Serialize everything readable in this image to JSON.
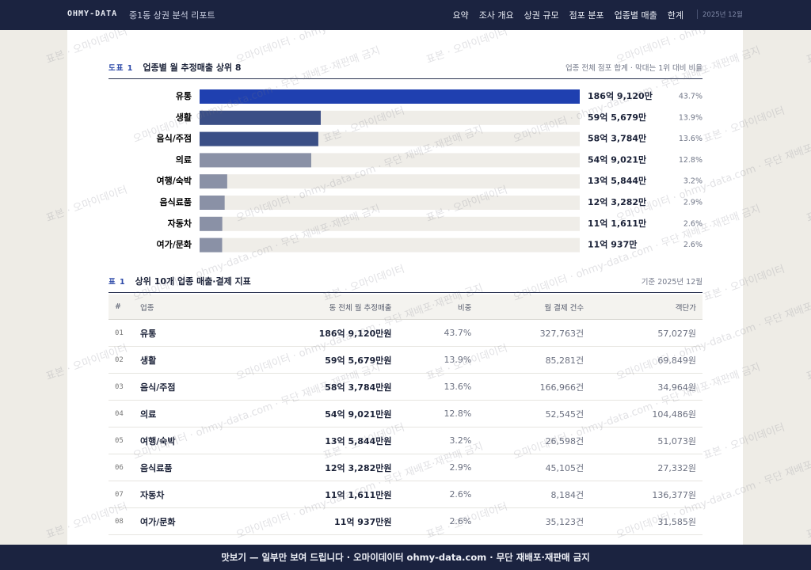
{
  "nav": {
    "logo": "OHMY-DATA",
    "subtitle": "중1동 상권 분석 리포트",
    "items": [
      "요약",
      "조사 개요",
      "상권 규모",
      "점포 분포",
      "업종별 매출",
      "한계"
    ],
    "date": "2025년 12월"
  },
  "chart_data": {
    "type": "bar",
    "label": "도표 1",
    "title": "업종별 월 추정매출 상위 8",
    "note": "업종 전체 점포 합계 · 막대는 1위 대비 비율",
    "categories": [
      "유통",
      "생활",
      "음식/주점",
      "의료",
      "여행/숙박",
      "음식료품",
      "자동차",
      "여가/문화"
    ],
    "values": [
      1869120,
      595679,
      583784,
      549021,
      135844,
      123282,
      111611,
      110937
    ],
    "value_labels": [
      "186억 9,120만",
      "59억 5,679만",
      "58억 3,784만",
      "54억 9,021만",
      "13억 5,844만",
      "12억 3,282만",
      "11억 1,611만",
      "11억 937만"
    ],
    "shares": [
      43.7,
      13.9,
      13.6,
      12.8,
      3.2,
      2.9,
      2.6,
      2.6
    ],
    "share_labels": [
      "43.7%",
      "13.9%",
      "13.6%",
      "12.8%",
      "3.2%",
      "2.9%",
      "2.6%",
      "2.6%"
    ],
    "colors": [
      "#1f40b0",
      "#3b4f86",
      "#3b4f86",
      "#8a91a6",
      "#8a91a6",
      "#8a91a6",
      "#8a91a6",
      "#8a91a6"
    ]
  },
  "table": {
    "label": "표 1",
    "title": "상위 10개 업종 매출·결제 지표",
    "note": "기준 2025년 12월",
    "headers": [
      "#",
      "업종",
      "동 전체 월 추정매출",
      "비중",
      "월 결제 건수",
      "객단가"
    ],
    "rows": [
      [
        "01",
        "유통",
        "186억 9,120만원",
        "43.7%",
        "327,763건",
        "57,027원"
      ],
      [
        "02",
        "생활",
        "59억 5,679만원",
        "13.9%",
        "85,281건",
        "69,849원"
      ],
      [
        "03",
        "음식/주점",
        "58억 3,784만원",
        "13.6%",
        "166,966건",
        "34,964원"
      ],
      [
        "04",
        "의료",
        "54억 9,021만원",
        "12.8%",
        "52,545건",
        "104,486원"
      ],
      [
        "05",
        "여행/숙박",
        "13억 5,844만원",
        "3.2%",
        "26,598건",
        "51,073원"
      ],
      [
        "06",
        "음식료품",
        "12억 3,282만원",
        "2.9%",
        "45,105건",
        "27,332원"
      ],
      [
        "07",
        "자동차",
        "11억 1,611만원",
        "2.6%",
        "8,184건",
        "136,377원"
      ],
      [
        "08",
        "여가/문화",
        "11억 937만원",
        "2.6%",
        "35,123건",
        "31,585원"
      ]
    ]
  },
  "footer": "맛보기 — 일부만 보여 드립니다 · 오마이데이터 ohmy-data.com · 무단 재배포·재판매 금지",
  "watermark": [
    "표본 · 오마이데이터",
    "오마이데이터 · ohmy-data.com · 무단 재배포·재판매 금지"
  ]
}
